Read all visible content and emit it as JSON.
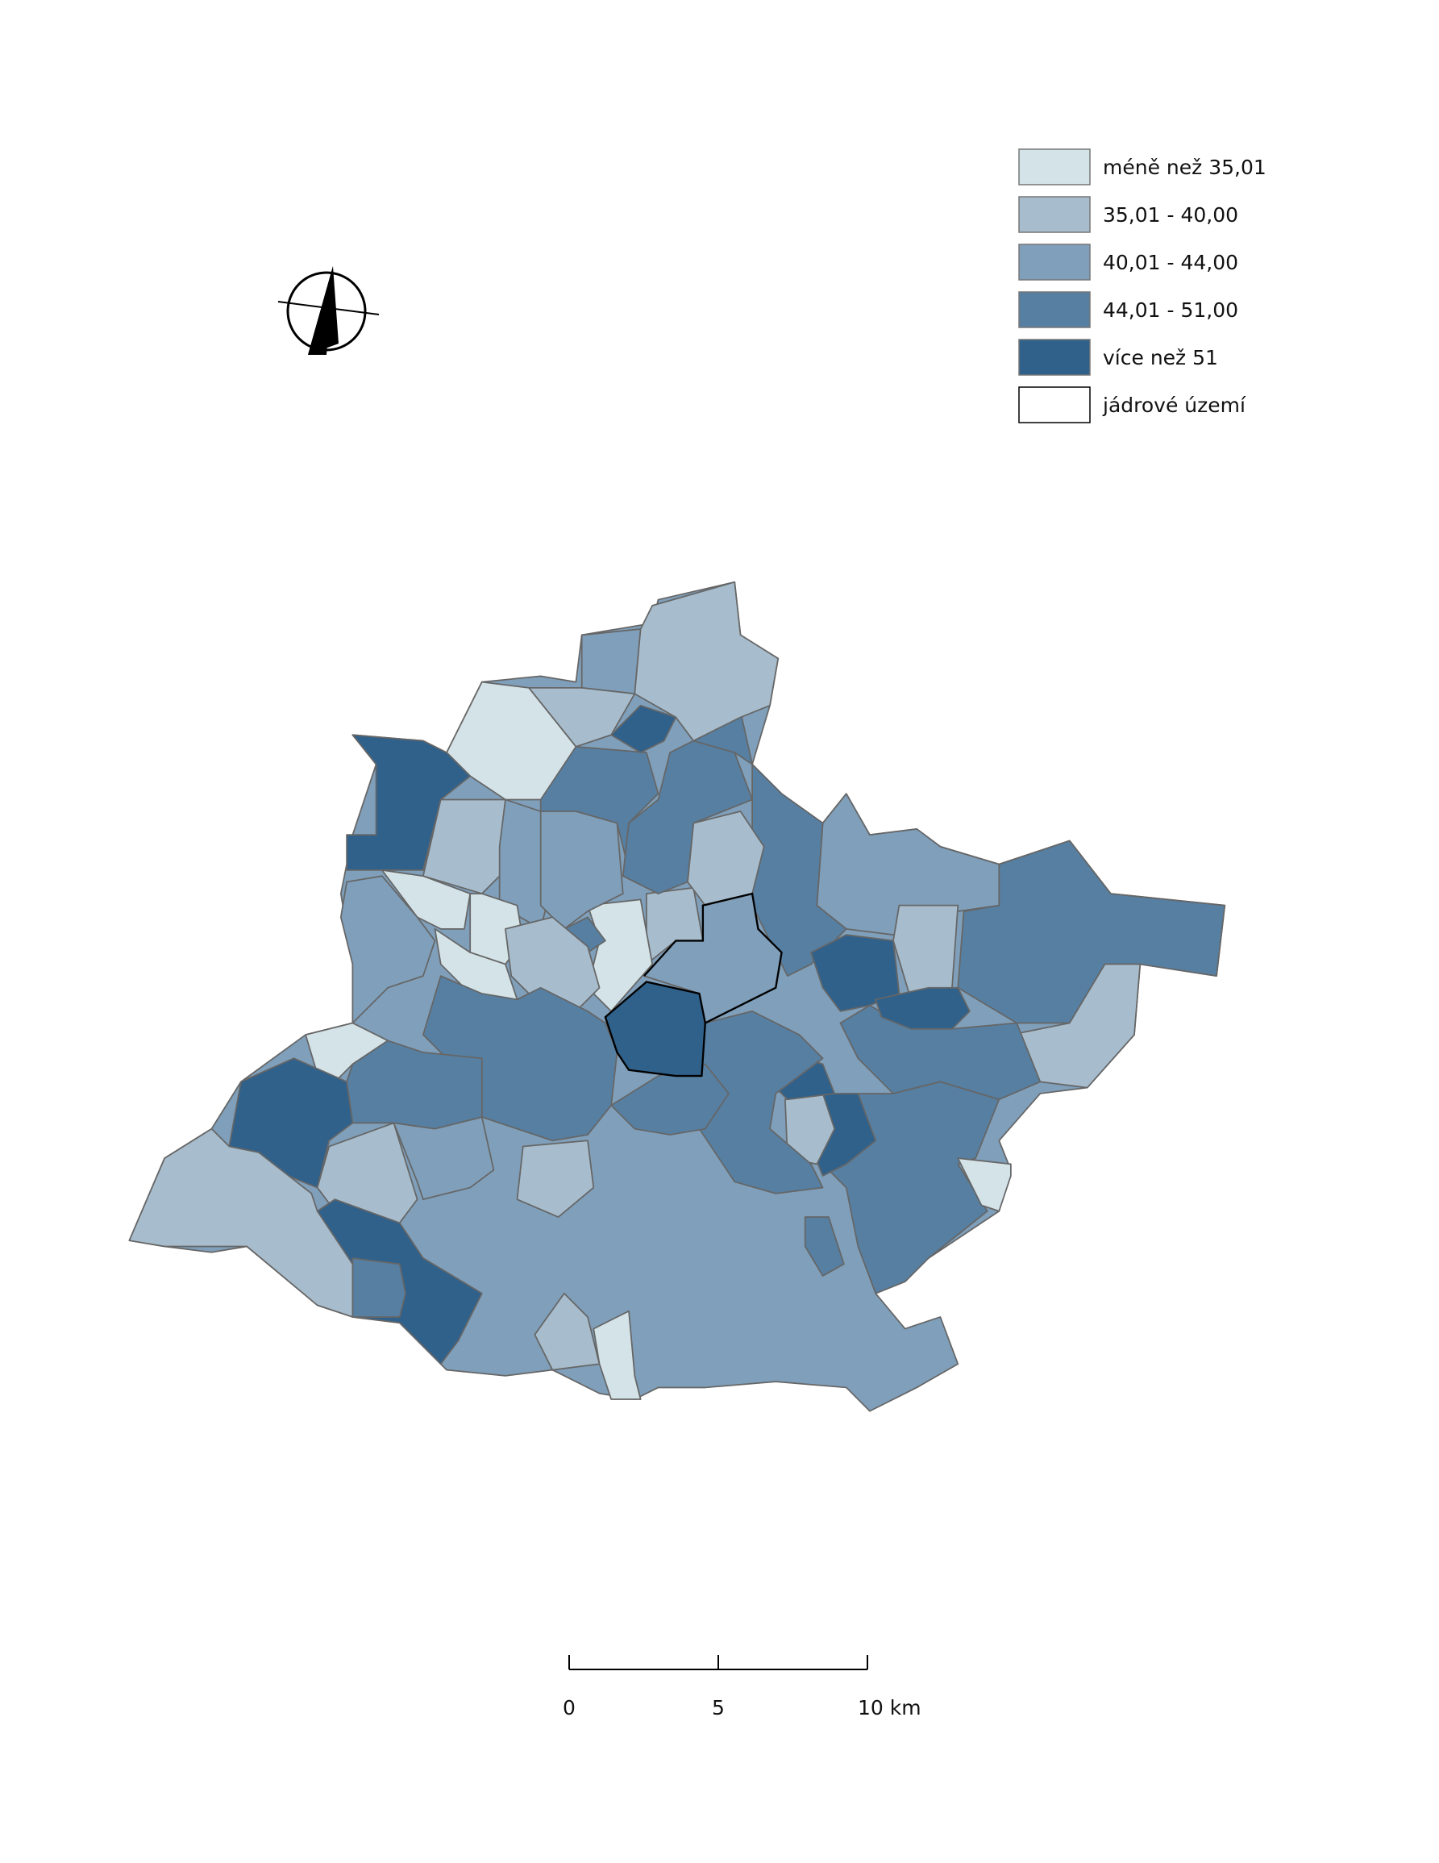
{
  "legend": {
    "items": [
      {
        "label": "méně než 35,01",
        "color": "#d3e3e8"
      },
      {
        "label": "35,01 - 40,00",
        "color": "#a7bdcd"
      },
      {
        "label": "40,01 - 44,00",
        "color": "#7f9fba"
      },
      {
        "label": "44,01 - 51,00",
        "color": "#567fa2"
      },
      {
        "label": "více než 51",
        "color": "#30618b"
      },
      {
        "label": "jádrové území",
        "color": "#ffffff"
      }
    ]
  },
  "scale_bar": {
    "labels": [
      "0",
      "5",
      "10 km"
    ]
  }
}
